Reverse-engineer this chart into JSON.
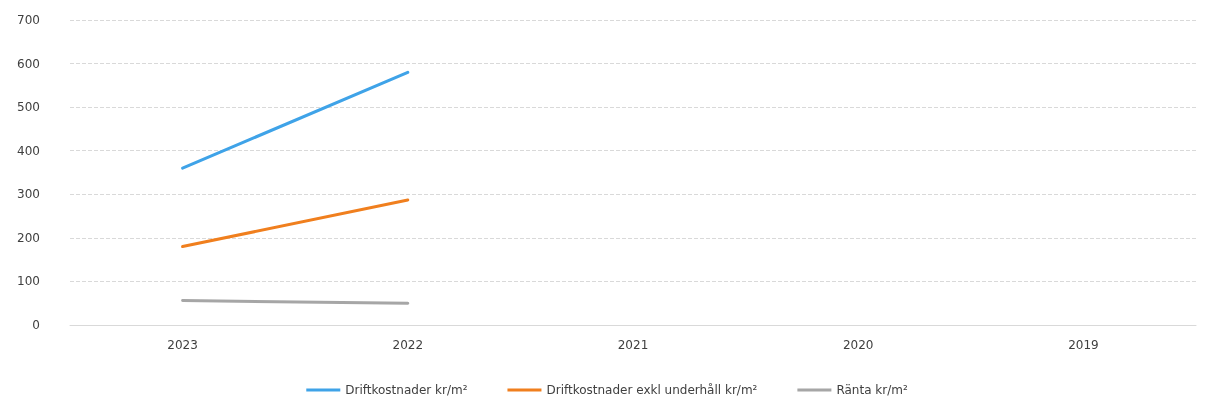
{
  "chart_data": {
    "type": "line",
    "categories": [
      "2023",
      "2022",
      "2021",
      "2020",
      "2019"
    ],
    "series": [
      {
        "name": "Driftkostnader kr/m²",
        "color": "#3fa3e8",
        "values": [
          360,
          580,
          null,
          null,
          null
        ]
      },
      {
        "name": "Driftkostnader exkl underhåll kr/m²",
        "color": "#f07f1e",
        "values": [
          180,
          287,
          null,
          null,
          null
        ]
      },
      {
        "name": "Ränta kr/m²",
        "color": "#a6a6a6",
        "values": [
          56,
          50,
          null,
          null,
          null
        ]
      }
    ],
    "ylim": [
      0,
      700
    ],
    "yticks": [
      0,
      100,
      200,
      300,
      400,
      500,
      600,
      700
    ],
    "grid": "y",
    "legend": "bottom",
    "marker": "none",
    "line_style": "solid"
  }
}
